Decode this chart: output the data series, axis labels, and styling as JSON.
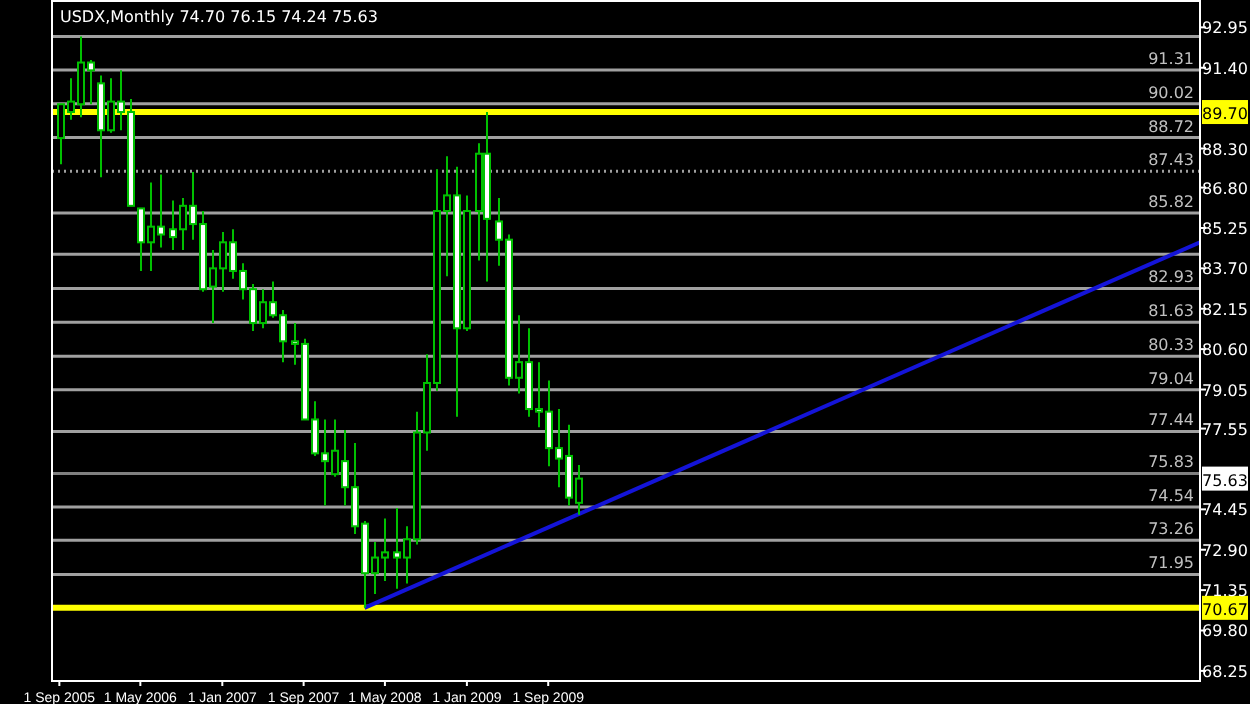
{
  "chart_data": {
    "type": "candlestick",
    "title": "USDX,Monthly  74.70 76.15 74.24 75.63",
    "x": [
      "2005-09",
      "2005-10",
      "2005-11",
      "2005-12",
      "2006-01",
      "2006-02",
      "2006-03",
      "2006-04",
      "2006-05",
      "2006-06",
      "2006-07",
      "2006-08",
      "2006-09",
      "2006-10",
      "2006-11",
      "2006-12",
      "2007-01",
      "2007-02",
      "2007-03",
      "2007-04",
      "2007-05",
      "2007-06",
      "2007-07",
      "2007-08",
      "2007-09",
      "2007-10",
      "2007-11",
      "2007-12",
      "2008-01",
      "2008-02",
      "2008-03",
      "2008-04",
      "2008-05",
      "2008-06",
      "2008-07",
      "2008-08",
      "2008-09",
      "2008-10",
      "2008-11",
      "2008-12",
      "2009-01",
      "2009-02",
      "2009-03",
      "2009-04",
      "2009-05",
      "2009-06",
      "2009-07",
      "2009-08",
      "2009-09",
      "2009-10",
      "2009-11",
      "2009-12"
    ],
    "ohlc": [
      [
        88.7,
        90.0,
        87.7,
        90.0
      ],
      [
        89.7,
        91.0,
        89.4,
        90.1
      ],
      [
        90.0,
        92.6,
        89.5,
        91.6
      ],
      [
        91.6,
        91.7,
        90.0,
        91.3
      ],
      [
        90.8,
        91.1,
        87.2,
        89.0
      ],
      [
        89.0,
        91.0,
        88.9,
        90.1
      ],
      [
        90.1,
        91.3,
        89.0,
        89.7
      ],
      [
        89.7,
        90.2,
        86.1,
        86.1
      ],
      [
        86.0,
        86.0,
        83.6,
        84.7
      ],
      [
        84.7,
        87.0,
        83.6,
        85.3
      ],
      [
        85.3,
        87.3,
        84.5,
        85.0
      ],
      [
        85.2,
        86.3,
        84.4,
        84.9
      ],
      [
        85.2,
        86.4,
        84.4,
        86.1
      ],
      [
        86.1,
        87.4,
        84.8,
        85.4
      ],
      [
        85.4,
        85.9,
        82.8,
        82.9
      ],
      [
        83.0,
        84.4,
        81.6,
        83.7
      ],
      [
        83.7,
        85.1,
        82.8,
        84.7
      ],
      [
        84.7,
        85.2,
        83.3,
        83.6
      ],
      [
        83.6,
        83.9,
        82.5,
        82.9
      ],
      [
        82.9,
        83.1,
        81.3,
        81.6
      ],
      [
        81.6,
        82.9,
        81.4,
        82.4
      ],
      [
        82.4,
        83.2,
        81.8,
        81.9
      ],
      [
        81.9,
        82.1,
        80.1,
        80.9
      ],
      [
        80.9,
        81.6,
        80.0,
        80.8
      ],
      [
        80.8,
        81.0,
        77.9,
        77.9
      ],
      [
        77.9,
        78.6,
        76.5,
        76.6
      ],
      [
        76.6,
        77.9,
        74.6,
        76.3
      ],
      [
        75.8,
        77.9,
        75.7,
        76.7
      ],
      [
        76.3,
        77.5,
        74.6,
        75.3
      ],
      [
        75.3,
        77.0,
        73.5,
        73.8
      ],
      [
        73.9,
        74.0,
        70.67,
        72.0
      ],
      [
        72.0,
        73.2,
        71.2,
        72.6
      ],
      [
        72.6,
        74.1,
        71.7,
        72.8
      ],
      [
        72.8,
        74.5,
        71.4,
        72.6
      ],
      [
        72.6,
        73.8,
        71.6,
        73.3
      ],
      [
        73.3,
        78.2,
        73.1,
        77.4
      ],
      [
        77.4,
        80.4,
        76.7,
        79.3
      ],
      [
        79.3,
        87.5,
        79.0,
        85.9
      ],
      [
        85.9,
        88.0,
        83.4,
        86.5
      ],
      [
        86.5,
        87.6,
        78.0,
        81.4
      ],
      [
        81.4,
        86.5,
        81.3,
        85.9
      ],
      [
        85.9,
        88.5,
        84.0,
        88.1
      ],
      [
        88.1,
        89.7,
        83.2,
        85.6
      ],
      [
        85.5,
        86.4,
        83.8,
        84.8
      ],
      [
        84.8,
        85.0,
        79.2,
        79.5
      ],
      [
        79.5,
        81.9,
        78.9,
        80.1
      ],
      [
        80.1,
        81.4,
        78.0,
        78.3
      ],
      [
        78.3,
        80.1,
        77.6,
        78.2
      ],
      [
        78.2,
        79.4,
        76.1,
        76.8
      ],
      [
        76.8,
        78.3,
        75.3,
        76.4
      ],
      [
        76.5,
        77.7,
        74.6,
        74.9
      ],
      [
        74.7,
        76.15,
        74.24,
        75.63
      ]
    ],
    "series": [
      {
        "type": "line",
        "x": [
          "2008-03",
          "2015-01-01"
        ],
        "values": [
          70.67,
          84.7
        ],
        "color": "#1414d8"
      }
    ],
    "xlim": [
      "2005-08-10",
      "2015-01-01"
    ],
    "xticks": [
      {
        "value": "2005-09-01",
        "label": "1 Sep 2005"
      },
      {
        "value": "2006-05-01",
        "label": "1 May 2006"
      },
      {
        "value": "2007-01-01",
        "label": "1 Jan 2007"
      },
      {
        "value": "2007-09-01",
        "label": "1 Sep 2007"
      },
      {
        "value": "2008-05-01",
        "label": "1 May 2008"
      },
      {
        "value": "2009-01-01",
        "label": "1 Jan 2009"
      },
      {
        "value": "2009-09-01",
        "label": "1 Sep 2009"
      }
    ],
    "ylim": [
      67.9,
      94.0
    ],
    "yticks": [
      92.95,
      {
        "value": 91.4,
        "label": "91.40"
      },
      {
        "value": 88.3,
        "label": "88.30"
      },
      {
        "value": 86.8,
        "label": "86.80"
      },
      85.25,
      {
        "value": 83.7,
        "label": "83.70"
      },
      82.15,
      {
        "value": 80.6,
        "label": "80.60"
      },
      79.05,
      77.55,
      74.45,
      {
        "value": 72.9,
        "label": "72.90"
      },
      71.35,
      {
        "value": 69.8,
        "label": "69.80"
      },
      68.25
    ],
    "ref_lines": [
      {
        "axis": "y",
        "value": 92.6,
        "label": null,
        "color": "#a0a0a0"
      },
      {
        "axis": "y",
        "value": 91.31,
        "label": "91.31",
        "color": "#a0a0a0"
      },
      {
        "axis": "y",
        "value": 90.02,
        "label": "90.02",
        "color": "#a0a0a0"
      },
      {
        "axis": "y",
        "value": 88.72,
        "label": "88.72",
        "color": "#a0a0a0"
      },
      {
        "axis": "y",
        "value": 87.43,
        "label": "87.43",
        "color": "#a0a0a0",
        "line_style": "dotted"
      },
      {
        "axis": "y",
        "value": 85.82,
        "label": "85.82",
        "color": "#a0a0a0"
      },
      {
        "axis": "y",
        "value": 84.24,
        "label": null,
        "color": "#a0a0a0"
      },
      {
        "axis": "y",
        "value": 82.93,
        "label": "82.93",
        "color": "#a0a0a0"
      },
      {
        "axis": "y",
        "value": 81.63,
        "label": "81.63",
        "color": "#a0a0a0"
      },
      {
        "axis": "y",
        "value": 80.33,
        "label": "80.33",
        "color": "#a0a0a0"
      },
      {
        "axis": "y",
        "value": 79.04,
        "label": "79.04",
        "color": "#a0a0a0"
      },
      {
        "axis": "y",
        "value": 77.44,
        "label": "77.44",
        "color": "#a0a0a0"
      },
      {
        "axis": "y",
        "value": 75.83,
        "label": "75.83",
        "color": "#808080"
      },
      {
        "axis": "y",
        "value": 74.54,
        "label": "74.54",
        "color": "#a0a0a0"
      },
      {
        "axis": "y",
        "value": 73.26,
        "label": "73.26",
        "color": "#a0a0a0"
      },
      {
        "axis": "y",
        "value": 71.95,
        "label": "71.95",
        "color": "#a0a0a0"
      },
      {
        "axis": "y",
        "value": 89.7,
        "label": "89.70",
        "color": "#ffff00"
      },
      {
        "axis": "y",
        "value": 70.67,
        "label": "70.67",
        "color": "#ffff00"
      }
    ],
    "annotations": [
      {
        "text": "75.63",
        "y": 75.63
      }
    ]
  }
}
